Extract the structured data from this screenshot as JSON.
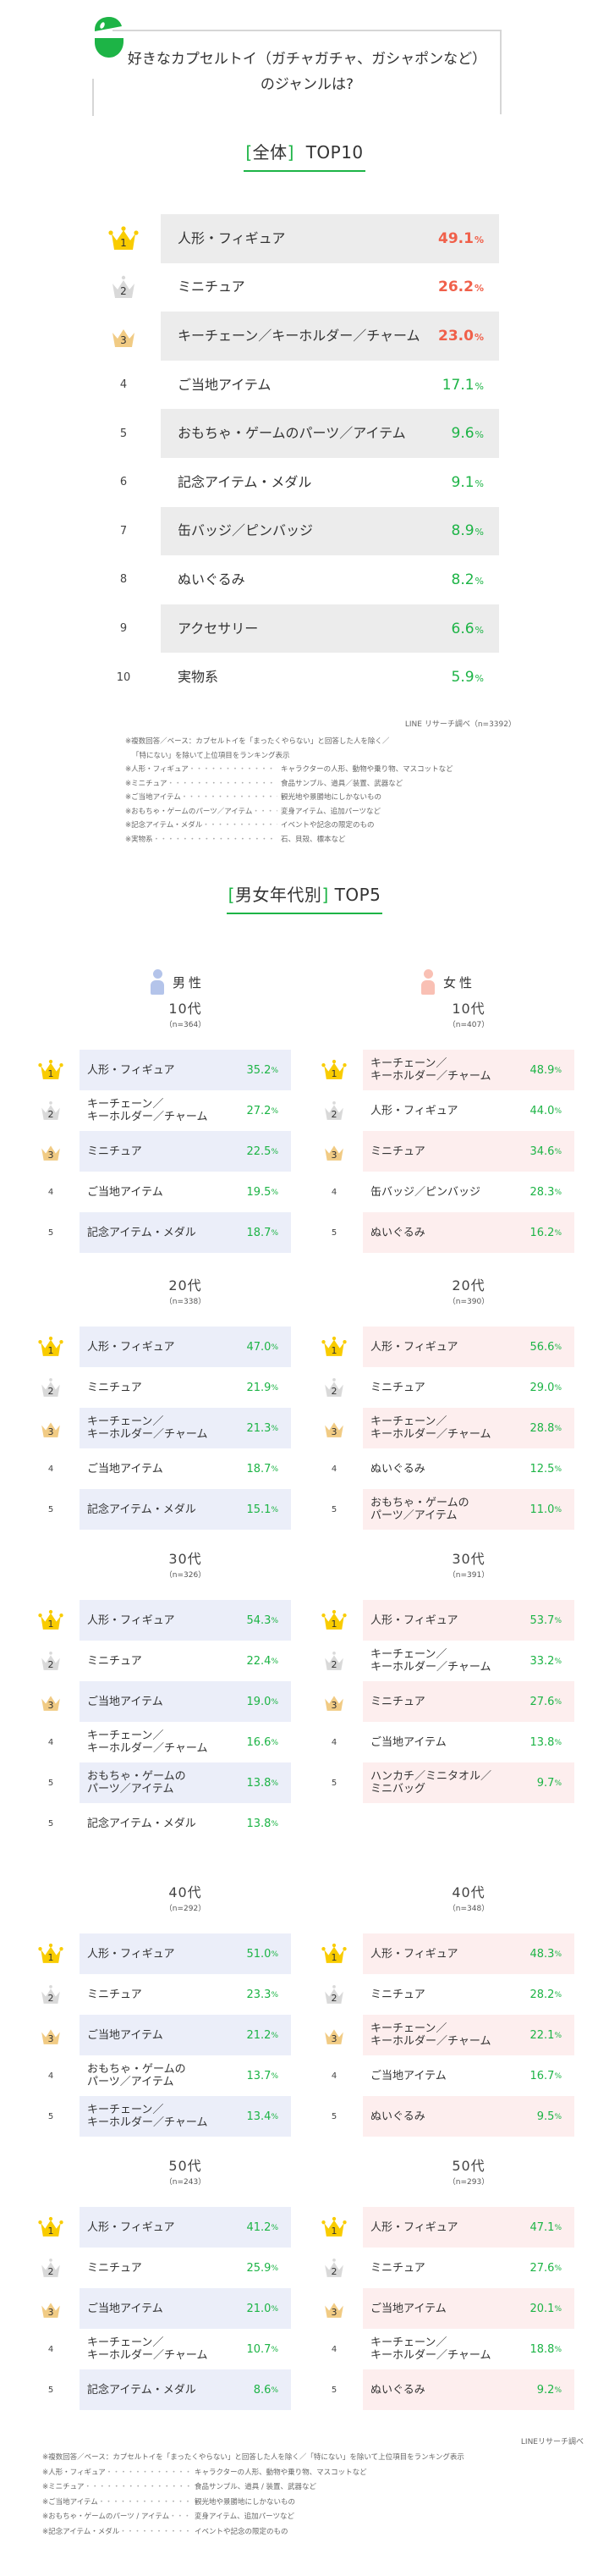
{
  "question": {
    "line1": "好きなカプセルトイ（ガチャガチャ、ガシャポンなど）",
    "line2": "のジャンルは?"
  },
  "colors": {
    "accent_green": "#1db446",
    "top3_red": "#f0604a",
    "gold": "#f9cc00",
    "silver": "#d9d9d9",
    "bronze": "#f1cb84",
    "male_row_bg": "#ebeef9",
    "female_row_bg": "#fdeeee",
    "male_icon": "#b4c4ea",
    "female_icon": "#f9c0b4"
  },
  "overall": {
    "title_bracket_open": "[",
    "title_tag": "全体",
    "title_bracket_close": "]",
    "title_rest": "TOP10",
    "unit": "%",
    "rows": [
      {
        "rank": "1",
        "label": "人形・フィギュア",
        "value": "49.1"
      },
      {
        "rank": "2",
        "label": "ミニチュア",
        "value": "26.2"
      },
      {
        "rank": "3",
        "label": "キーチェーン／キーホルダー／チャーム",
        "value": "23.0"
      },
      {
        "rank": "4",
        "label": "ご当地アイテム",
        "value": "17.1"
      },
      {
        "rank": "5",
        "label": "おもちゃ・ゲームのパーツ／アイテム",
        "value": "9.6"
      },
      {
        "rank": "6",
        "label": "記念アイテム・メダル",
        "value": "9.1"
      },
      {
        "rank": "7",
        "label": "缶バッジ／ピンバッジ",
        "value": "8.9"
      },
      {
        "rank": "8",
        "label": "ぬいぐるみ",
        "value": "8.2"
      },
      {
        "rank": "9",
        "label": "アクセサリー",
        "value": "6.6"
      },
      {
        "rank": "10",
        "label": "実物系",
        "value": "5.9"
      }
    ],
    "source": "LINE リサーチ調べ（n=3392）",
    "notes_intro1": "※複数回答／ベース：カプセルトイを「まったくやらない」と回答した人を除く／",
    "notes_intro2": "「特にない」を除いて上位項目をランキング表示",
    "notes": [
      {
        "key": "※人形・フィギュア",
        "value": "キャラクターの人形、動物や乗り物、マスコットなど"
      },
      {
        "key": "※ミニチュア",
        "value": "食品サンプル、道具／装置、武器など"
      },
      {
        "key": "※ご当地アイテム",
        "value": "観光地や景勝地にしかないもの"
      },
      {
        "key": "※おもちゃ・ゲームのパーツ／アイテム",
        "value": "変身アイテム、追加パーツなど"
      },
      {
        "key": "※記念アイテム・メダル",
        "value": "イベントや記念の限定のもの"
      },
      {
        "key": "※実物系",
        "value": "石、貝殻、標本など"
      }
    ]
  },
  "by_gender_age": {
    "title_bracket_open": "[",
    "title_tag": "男女年代別",
    "title_bracket_close": "]",
    "title_rest": "TOP5",
    "unit": "%",
    "male": {
      "label": "男性",
      "groups": [
        {
          "age": "10代",
          "n": "（n=364）",
          "rows": [
            {
              "rank": "1",
              "label": "人形・フィギュア",
              "value": "35.2"
            },
            {
              "rank": "2",
              "label": "キーチェーン／\nキーホルダー／チャーム",
              "value": "27.2"
            },
            {
              "rank": "3",
              "label": "ミニチュア",
              "value": "22.5"
            },
            {
              "rank": "4",
              "label": "ご当地アイテム",
              "value": "19.5"
            },
            {
              "rank": "5",
              "label": "記念アイテム・メダル",
              "value": "18.7"
            }
          ]
        },
        {
          "age": "20代",
          "n": "（n=338）",
          "rows": [
            {
              "rank": "1",
              "label": "人形・フィギュア",
              "value": "47.0"
            },
            {
              "rank": "2",
              "label": "ミニチュア",
              "value": "21.9"
            },
            {
              "rank": "3",
              "label": "キーチェーン／\nキーホルダー／チャーム",
              "value": "21.3"
            },
            {
              "rank": "4",
              "label": "ご当地アイテム",
              "value": "18.7"
            },
            {
              "rank": "5",
              "label": "記念アイテム・メダル",
              "value": "15.1"
            }
          ]
        },
        {
          "age": "30代",
          "n": "（n=326）",
          "rows": [
            {
              "rank": "1",
              "label": "人形・フィギュア",
              "value": "54.3"
            },
            {
              "rank": "2",
              "label": "ミニチュア",
              "value": "22.4"
            },
            {
              "rank": "3",
              "label": "ご当地アイテム",
              "value": "19.0"
            },
            {
              "rank": "4",
              "label": "キーチェーン／\nキーホルダー／チャーム",
              "value": "16.6"
            },
            {
              "rank": "5",
              "label": "おもちゃ・ゲームの\nパーツ／アイテム",
              "value": "13.8"
            },
            {
              "rank": "5",
              "label": "記念アイテム・メダル",
              "value": "13.8"
            }
          ]
        },
        {
          "age": "40代",
          "n": "（n=292）",
          "rows": [
            {
              "rank": "1",
              "label": "人形・フィギュア",
              "value": "51.0"
            },
            {
              "rank": "2",
              "label": "ミニチュア",
              "value": "23.3"
            },
            {
              "rank": "3",
              "label": "ご当地アイテム",
              "value": "21.2"
            },
            {
              "rank": "4",
              "label": "おもちゃ・ゲームの\nパーツ／アイテム",
              "value": "13.7"
            },
            {
              "rank": "5",
              "label": "キーチェーン／\nキーホルダー／チャーム",
              "value": "13.4"
            }
          ]
        },
        {
          "age": "50代",
          "n": "（n=243）",
          "rows": [
            {
              "rank": "1",
              "label": "人形・フィギュア",
              "value": "41.2"
            },
            {
              "rank": "2",
              "label": "ミニチュア",
              "value": "25.9"
            },
            {
              "rank": "3",
              "label": "ご当地アイテム",
              "value": "21.0"
            },
            {
              "rank": "4",
              "label": "キーチェーン／\nキーホルダー／チャーム",
              "value": "10.7"
            },
            {
              "rank": "5",
              "label": "記念アイテム・メダル",
              "value": "8.6"
            }
          ]
        }
      ]
    },
    "female": {
      "label": "女性",
      "groups": [
        {
          "age": "10代",
          "n": "（n=407）",
          "rows": [
            {
              "rank": "1",
              "label": "キーチェーン／\nキーホルダー／チャーム",
              "value": "48.9"
            },
            {
              "rank": "2",
              "label": "人形・フィギュア",
              "value": "44.0"
            },
            {
              "rank": "3",
              "label": "ミニチュア",
              "value": "34.6"
            },
            {
              "rank": "4",
              "label": "缶バッジ／ピンバッジ",
              "value": "28.3"
            },
            {
              "rank": "5",
              "label": "ぬいぐるみ",
              "value": "16.2"
            }
          ]
        },
        {
          "age": "20代",
          "n": "（n=390）",
          "rows": [
            {
              "rank": "1",
              "label": "人形・フィギュア",
              "value": "56.6"
            },
            {
              "rank": "2",
              "label": "ミニチュア",
              "value": "29.0"
            },
            {
              "rank": "3",
              "label": "キーチェーン／\nキーホルダー／チャーム",
              "value": "28.8"
            },
            {
              "rank": "4",
              "label": "ぬいぐるみ",
              "value": "12.5"
            },
            {
              "rank": "5",
              "label": "おもちゃ・ゲームの\nパーツ／アイテム",
              "value": "11.0"
            }
          ]
        },
        {
          "age": "30代",
          "n": "（n=391）",
          "rows": [
            {
              "rank": "1",
              "label": "人形・フィギュア",
              "value": "53.7"
            },
            {
              "rank": "2",
              "label": "キーチェーン／\nキーホルダー／チャーム",
              "value": "33.2"
            },
            {
              "rank": "3",
              "label": "ミニチュア",
              "value": "27.6"
            },
            {
              "rank": "4",
              "label": "ご当地アイテム",
              "value": "13.8"
            },
            {
              "rank": "5",
              "label": "ハンカチ／ミニタオル／\nミニバッグ",
              "value": "9.7"
            }
          ]
        },
        {
          "age": "40代",
          "n": "（n=348）",
          "rows": [
            {
              "rank": "1",
              "label": "人形・フィギュア",
              "value": "48.3"
            },
            {
              "rank": "2",
              "label": "ミニチュア",
              "value": "28.2"
            },
            {
              "rank": "3",
              "label": "キーチェーン／\nキーホルダー／チャーム",
              "value": "22.1"
            },
            {
              "rank": "4",
              "label": "ご当地アイテム",
              "value": "16.7"
            },
            {
              "rank": "5",
              "label": "ぬいぐるみ",
              "value": "9.5"
            }
          ]
        },
        {
          "age": "50代",
          "n": "（n=293）",
          "rows": [
            {
              "rank": "1",
              "label": "人形・フィギュア",
              "value": "47.1"
            },
            {
              "rank": "2",
              "label": "ミニチュア",
              "value": "27.6"
            },
            {
              "rank": "3",
              "label": "ご当地アイテム",
              "value": "20.1"
            },
            {
              "rank": "4",
              "label": "キーチェーン／\nキーホルダー／チャーム",
              "value": "18.8"
            },
            {
              "rank": "5",
              "label": "ぬいぐるみ",
              "value": "9.2"
            }
          ]
        }
      ]
    },
    "source": "LINEリサーチ調べ",
    "notes_intro": "※複数回答／ベース：カプセルトイを「まったくやらない」と回答した人を除く／「特にない」を除いて上位項目をランキング表示",
    "notes": [
      {
        "key": "※人形・フィギュア",
        "value": "キャラクターの人形、動物や乗り物、マスコットなど"
      },
      {
        "key": "※ミニチュア",
        "value": "食品サンプル、道具 / 装置、武器など"
      },
      {
        "key": "※ご当地アイテム",
        "value": "観光地や景勝地にしかないもの"
      },
      {
        "key": "※おもちゃ・ゲームのパーツ / アイテム",
        "value": "変身アイテム、追加パーツなど"
      },
      {
        "key": "※記念アイテム・メダル",
        "value": "イベントや記念の限定のもの"
      }
    ]
  },
  "chart_data": [
    {
      "type": "table",
      "title": "[全体] TOP10",
      "categories": [
        "人形・フィギュア",
        "ミニチュア",
        "キーチェーン／キーホルダー／チャーム",
        "ご当地アイテム",
        "おもちゃ・ゲームのパーツ／アイテム",
        "記念アイテム・メダル",
        "缶バッジ／ピンバッジ",
        "ぬいぐるみ",
        "アクセサリー",
        "実物系"
      ],
      "values": [
        49.1,
        26.2,
        23.0,
        17.1,
        9.6,
        9.1,
        8.9,
        8.2,
        6.6,
        5.9
      ],
      "unit": "%",
      "n": 3392
    },
    {
      "type": "table",
      "title": "[男女年代別] TOP5",
      "series": [
        {
          "name": "男性 10代 (n=364)",
          "categories": [
            "人形・フィギュア",
            "キーチェーン／キーホルダー／チャーム",
            "ミニチュア",
            "ご当地アイテム",
            "記念アイテム・メダル"
          ],
          "values": [
            35.2,
            27.2,
            22.5,
            19.5,
            18.7
          ]
        },
        {
          "name": "男性 20代 (n=338)",
          "categories": [
            "人形・フィギュア",
            "ミニチュア",
            "キーチェーン／キーホルダー／チャーム",
            "ご当地アイテム",
            "記念アイテム・メダル"
          ],
          "values": [
            47.0,
            21.9,
            21.3,
            18.7,
            15.1
          ]
        },
        {
          "name": "男性 30代 (n=326)",
          "categories": [
            "人形・フィギュア",
            "ミニチュア",
            "ご当地アイテム",
            "キーチェーン／キーホルダー／チャーム",
            "おもちゃ・ゲームのパーツ／アイテム",
            "記念アイテム・メダル"
          ],
          "values": [
            54.3,
            22.4,
            19.0,
            16.6,
            13.8,
            13.8
          ]
        },
        {
          "name": "男性 40代 (n=292)",
          "categories": [
            "人形・フィギュア",
            "ミニチュア",
            "ご当地アイテム",
            "おもちゃ・ゲームのパーツ／アイテム",
            "キーチェーン／キーホルダー／チャーム"
          ],
          "values": [
            51.0,
            23.3,
            21.2,
            13.7,
            13.4
          ]
        },
        {
          "name": "男性 50代 (n=243)",
          "categories": [
            "人形・フィギュア",
            "ミニチュア",
            "ご当地アイテム",
            "キーチェーン／キーホルダー／チャーム",
            "記念アイテム・メダル"
          ],
          "values": [
            41.2,
            25.9,
            21.0,
            10.7,
            8.6
          ]
        },
        {
          "name": "女性 10代 (n=407)",
          "categories": [
            "キーチェーン／キーホルダー／チャーム",
            "人形・フィギュア",
            "ミニチュア",
            "缶バッジ／ピンバッジ",
            "ぬいぐるみ"
          ],
          "values": [
            48.9,
            44.0,
            34.6,
            28.3,
            16.2
          ]
        },
        {
          "name": "女性 20代 (n=390)",
          "categories": [
            "人形・フィギュア",
            "ミニチュア",
            "キーチェーン／キーホルダー／チャーム",
            "ぬいぐるみ",
            "おもちゃ・ゲームのパーツ／アイテム"
          ],
          "values": [
            56.6,
            29.0,
            28.8,
            12.5,
            11.0
          ]
        },
        {
          "name": "女性 30代 (n=391)",
          "categories": [
            "人形・フィギュア",
            "キーチェーン／キーホルダー／チャーム",
            "ミニチュア",
            "ご当地アイテム",
            "ハンカチ／ミニタオル／ミニバッグ"
          ],
          "values": [
            53.7,
            33.2,
            27.6,
            13.8,
            9.7
          ]
        },
        {
          "name": "女性 40代 (n=348)",
          "categories": [
            "人形・フィギュア",
            "ミニチュア",
            "キーチェーン／キーホルダー／チャーム",
            "ご当地アイテム",
            "ぬいぐるみ"
          ],
          "values": [
            48.3,
            28.2,
            22.1,
            16.7,
            9.5
          ]
        },
        {
          "name": "女性 50代 (n=293)",
          "categories": [
            "人形・フィギュア",
            "ミニチュア",
            "ご当地アイテム",
            "キーチェーン／キーホルダー／チャーム",
            "ぬいぐるみ"
          ],
          "values": [
            47.1,
            27.6,
            20.1,
            18.8,
            9.2
          ]
        }
      ],
      "unit": "%"
    }
  ]
}
